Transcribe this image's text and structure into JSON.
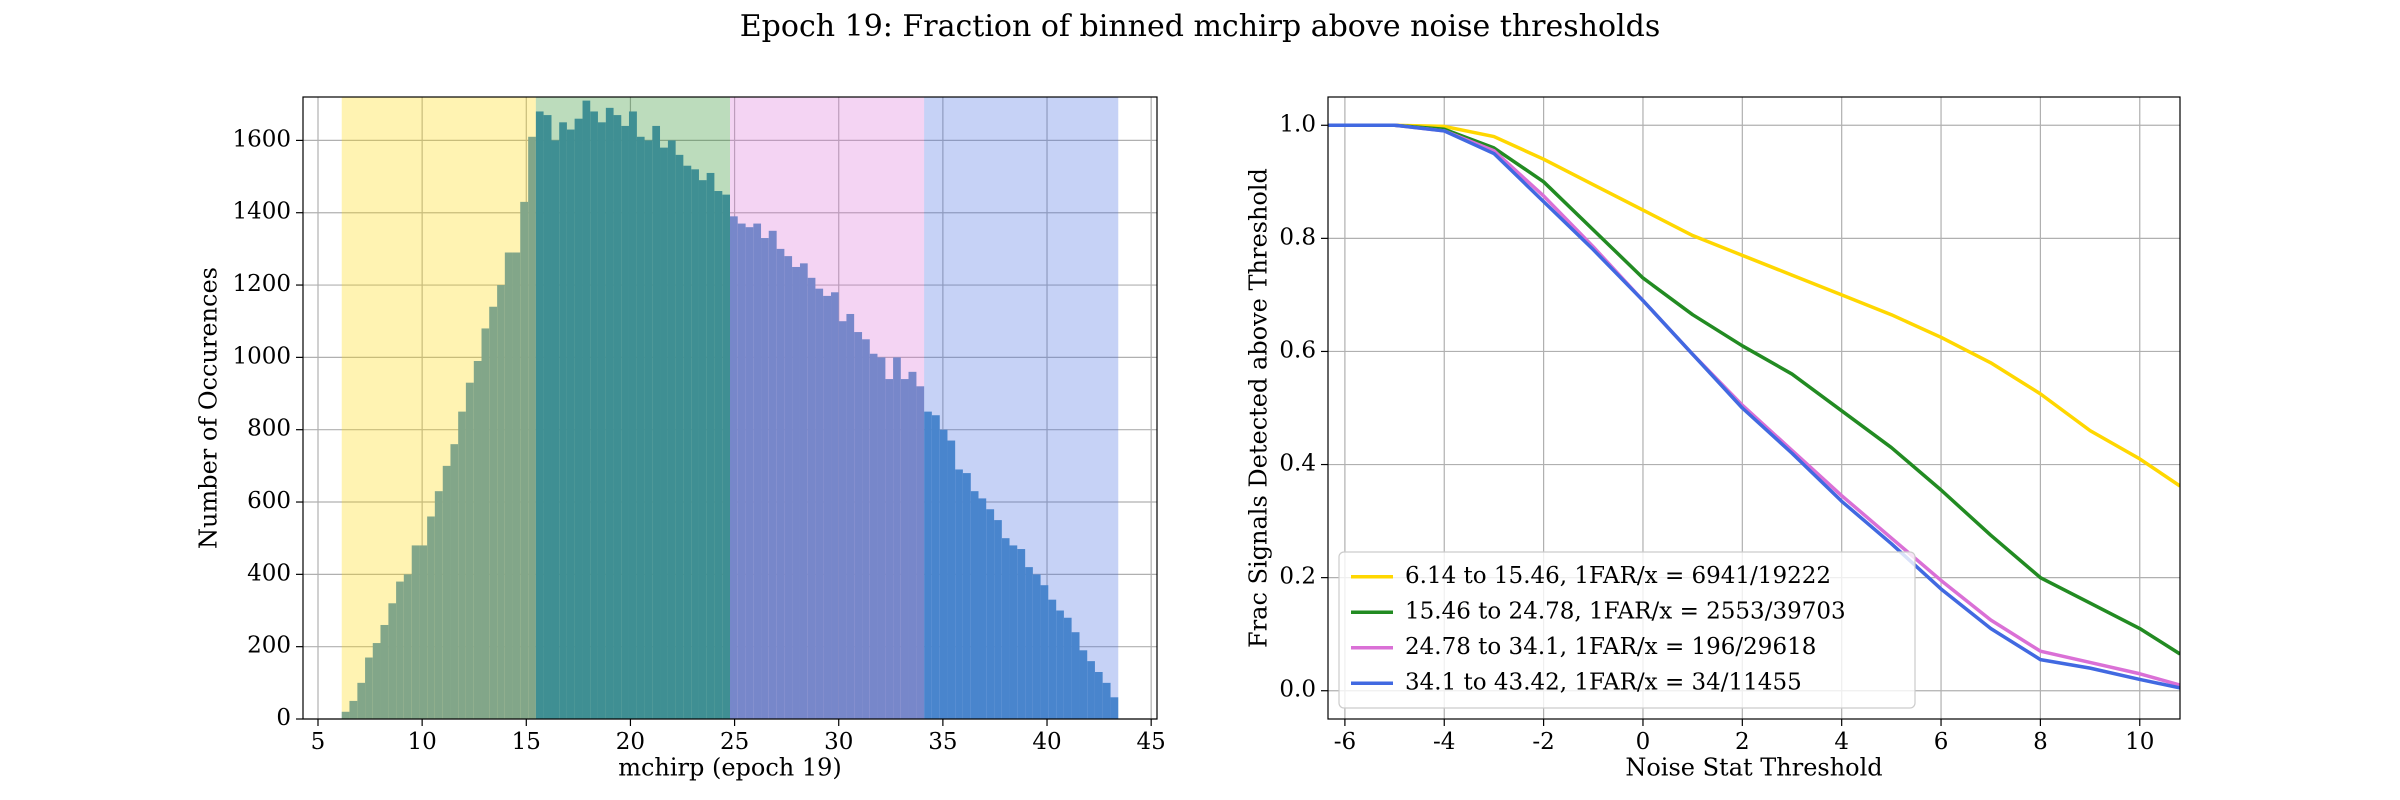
{
  "title": "Epoch 19: Fraction of binned mchirp above noise thresholds",
  "chart_data": [
    {
      "type": "histogram",
      "xlabel": "mchirp (epoch 19)",
      "ylabel": "Number of Occurences",
      "bins": [
        6.14,
        6.51,
        6.89,
        7.26,
        7.63,
        8.0,
        8.38,
        8.75,
        9.12,
        9.5,
        9.87,
        10.24,
        10.61,
        10.99,
        11.36,
        11.73,
        12.1,
        12.48,
        12.85,
        13.22,
        13.6,
        13.97,
        14.34,
        14.71,
        15.09,
        15.46,
        15.83,
        16.21,
        16.58,
        16.95,
        17.32,
        17.7,
        18.07,
        18.44,
        18.82,
        19.19,
        19.56,
        19.93,
        20.31,
        20.68,
        21.05,
        21.42,
        21.8,
        22.17,
        22.54,
        22.92,
        23.29,
        23.66,
        24.03,
        24.41,
        24.78,
        25.15,
        25.53,
        25.9,
        26.27,
        26.64,
        27.02,
        27.39,
        27.76,
        28.14,
        28.51,
        28.88,
        29.25,
        29.63,
        30.0,
        30.37,
        30.74,
        31.12,
        31.49,
        31.86,
        32.24,
        32.61,
        32.98,
        33.35,
        33.73,
        34.1,
        34.47,
        34.85,
        35.22,
        35.59,
        35.96,
        36.34,
        36.71,
        37.08,
        37.46,
        37.83,
        38.2,
        38.57,
        38.95,
        39.32,
        39.69,
        40.06,
        40.44,
        40.81,
        41.18,
        41.56,
        41.93,
        42.3,
        42.67,
        43.05,
        43.42
      ],
      "values": [
        20,
        50,
        100,
        170,
        210,
        260,
        320,
        380,
        400,
        480,
        480,
        560,
        630,
        700,
        760,
        850,
        930,
        990,
        1080,
        1140,
        1200,
        1290,
        1290,
        1430,
        1610,
        1680,
        1670,
        1600,
        1650,
        1630,
        1660,
        1710,
        1680,
        1650,
        1690,
        1670,
        1640,
        1680,
        1610,
        1600,
        1640,
        1580,
        1600,
        1560,
        1530,
        1520,
        1490,
        1510,
        1460,
        1450,
        1390,
        1370,
        1360,
        1370,
        1330,
        1350,
        1300,
        1280,
        1250,
        1260,
        1220,
        1190,
        1170,
        1180,
        1100,
        1120,
        1070,
        1050,
        1010,
        1000,
        940,
        1000,
        940,
        960,
        920,
        850,
        840,
        800,
        770,
        690,
        680,
        630,
        610,
        580,
        550,
        500,
        480,
        470,
        420,
        400,
        370,
        330,
        300,
        280,
        240,
        190,
        160,
        130,
        100,
        60
      ],
      "color": "#4d91c4",
      "spans": [
        {
          "range": [
            6.14,
            15.46
          ],
          "color": "#ffd700"
        },
        {
          "range": [
            15.46,
            24.78
          ],
          "color": "#228b22"
        },
        {
          "range": [
            24.78,
            34.1
          ],
          "color": "#da70d6"
        },
        {
          "range": [
            34.1,
            43.42
          ],
          "color": "#4169e1"
        }
      ],
      "xlim": [
        4.28,
        45.28
      ],
      "ylim": [
        0,
        1720
      ],
      "xticks": [
        5,
        10,
        15,
        20,
        25,
        30,
        35,
        40,
        45
      ],
      "yticks": [
        0,
        200,
        400,
        600,
        800,
        1000,
        1200,
        1400,
        1600
      ],
      "grid": true
    },
    {
      "type": "line",
      "xlabel": "Noise Stat Threshold",
      "ylabel": "Frac Signals Detected above Threshold",
      "x": [
        -6.34,
        -5,
        -4,
        -3,
        -2,
        -1,
        0,
        1,
        2,
        3,
        4,
        5,
        6,
        7,
        8,
        9,
        10,
        10.81
      ],
      "series": [
        {
          "name": "6.14 to 15.46, 1FAR/x = 6941/19222",
          "color": "#ffd700",
          "values": [
            1.0,
            1.0,
            0.998,
            0.98,
            0.94,
            0.895,
            0.85,
            0.805,
            0.77,
            0.735,
            0.7,
            0.665,
            0.625,
            0.58,
            0.525,
            0.46,
            0.41,
            0.362
          ]
        },
        {
          "name": "15.46 to 24.78, 1FAR/x = 2553/39703",
          "color": "#228b22",
          "values": [
            1.0,
            1.0,
            0.993,
            0.96,
            0.9,
            0.815,
            0.73,
            0.665,
            0.61,
            0.56,
            0.495,
            0.43,
            0.355,
            0.275,
            0.2,
            0.155,
            0.11,
            0.065
          ]
        },
        {
          "name": "24.78 to 34.1, 1FAR/x = 196/29618",
          "color": "#da70d6",
          "values": [
            1.0,
            1.0,
            0.99,
            0.955,
            0.875,
            0.785,
            0.69,
            0.595,
            0.505,
            0.425,
            0.345,
            0.27,
            0.195,
            0.125,
            0.07,
            0.05,
            0.03,
            0.01
          ]
        },
        {
          "name": "34.1 to 43.42, 1FAR/x = 34/11455",
          "color": "#4169e1",
          "values": [
            1.0,
            1.0,
            0.99,
            0.95,
            0.865,
            0.78,
            0.69,
            0.595,
            0.5,
            0.42,
            0.335,
            0.26,
            0.18,
            0.11,
            0.055,
            0.04,
            0.02,
            0.005
          ]
        }
      ],
      "xlim": [
        -6.34,
        10.81
      ],
      "ylim": [
        -0.05,
        1.05
      ],
      "xticks": [
        -6,
        -4,
        -2,
        0,
        2,
        4,
        6,
        8,
        10
      ],
      "yticks": [
        {
          "value": 0,
          "label": "0.0"
        },
        {
          "value": 0.2,
          "label": "0.2"
        },
        {
          "value": 0.4,
          "label": "0.4"
        },
        {
          "value": 0.6,
          "label": "0.6"
        },
        {
          "value": 0.8,
          "label": "0.8"
        },
        {
          "value": 1,
          "label": "1.0"
        }
      ],
      "grid": true,
      "legend": "lower left"
    }
  ]
}
